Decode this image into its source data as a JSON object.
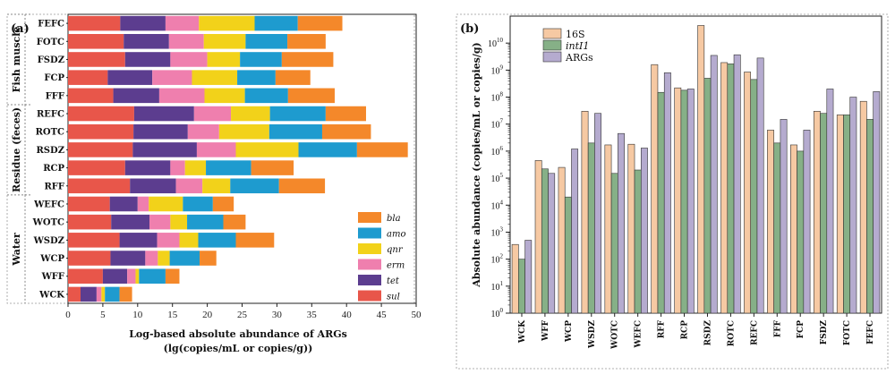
{
  "chart_data": [
    {
      "type": "bar",
      "stacked": true,
      "orientation": "horizontal",
      "panel_label": "(a)",
      "xlabel_line1": "Log-based absolute abundance of ARGs",
      "xlabel_line2": "(lg(copies/mL or copies/g))",
      "xlim": [
        0,
        50
      ],
      "x_ticks": [
        "0",
        "5",
        "10",
        "15",
        "20",
        "25",
        "30",
        "35",
        "40",
        "45",
        "50"
      ],
      "categories": [
        "FEFC",
        "FOTC",
        "FSDZ",
        "FCP",
        "FFF",
        "REFC",
        "ROTC",
        "RSDZ",
        "RCP",
        "RFF",
        "WEFC",
        "WOTC",
        "WSDZ",
        "WCP",
        "WFF",
        "WCK"
      ],
      "groups": [
        {
          "label": "Fish muscle",
          "members": [
            "FEFC",
            "FOTC",
            "FSDZ",
            "FCP",
            "FFF"
          ]
        },
        {
          "label": "Residue (feces)",
          "members": [
            "REFC",
            "ROTC",
            "RSDZ",
            "RCP",
            "RFF"
          ]
        },
        {
          "label": "Water",
          "members": [
            "WEFC",
            "WOTC",
            "WSDZ",
            "WCP",
            "WFF",
            "WCK"
          ]
        }
      ],
      "series": [
        {
          "name": "sul",
          "color": "#e8564a",
          "values": [
            7.5,
            8.0,
            8.2,
            5.7,
            6.5,
            9.5,
            9.4,
            9.3,
            8.2,
            8.9,
            6.0,
            6.2,
            7.4,
            6.1,
            5.0,
            1.8
          ]
        },
        {
          "name": "tet",
          "color": "#5c3d8f",
          "values": [
            6.5,
            6.5,
            6.5,
            6.4,
            6.6,
            8.6,
            7.8,
            9.2,
            6.5,
            6.6,
            4.0,
            5.5,
            5.4,
            5.0,
            3.5,
            2.3
          ]
        },
        {
          "name": "erm",
          "color": "#ef7fae",
          "values": [
            4.8,
            5.0,
            5.3,
            5.7,
            6.5,
            5.3,
            4.5,
            5.6,
            2.1,
            3.8,
            1.6,
            3.0,
            3.2,
            1.8,
            1.2,
            0.7
          ]
        },
        {
          "name": "qnr",
          "color": "#f2d21a",
          "values": [
            8.0,
            6.0,
            4.7,
            6.5,
            5.8,
            5.6,
            7.2,
            9.0,
            3.0,
            4.0,
            4.9,
            2.4,
            2.7,
            1.7,
            0.5,
            0.5
          ]
        },
        {
          "name": "amo",
          "color": "#1e9bcf",
          "values": [
            6.2,
            6.0,
            6.0,
            5.5,
            6.2,
            8.0,
            7.6,
            8.4,
            6.5,
            7.0,
            4.3,
            5.2,
            5.4,
            4.3,
            3.8,
            2.1
          ]
        },
        {
          "name": "bla",
          "color": "#f4882a",
          "values": [
            6.4,
            5.5,
            7.4,
            5.0,
            6.7,
            5.8,
            7.0,
            7.3,
            6.1,
            6.6,
            3.0,
            3.2,
            5.5,
            2.4,
            2.0,
            1.8
          ]
        }
      ]
    },
    {
      "type": "bar",
      "panel_label": "(b)",
      "ylabel": "Absolute abundance (copies/mL or copies/g)",
      "yscale": "log",
      "ylim": [
        1,
        100000000000
      ],
      "y_ticks": [
        "10^0",
        "10^1",
        "10^2",
        "10^3",
        "10^4",
        "10^5",
        "10^6",
        "10^7",
        "10^8",
        "10^9",
        "10^10"
      ],
      "categories": [
        "WCK",
        "WFF",
        "WCP",
        "WSDZ",
        "WOTC",
        "WEFC",
        "RFF",
        "RCP",
        "RSDZ",
        "ROTC",
        "REFC",
        "FFF",
        "FCP",
        "FSDZ",
        "FOTC",
        "FEFC"
      ],
      "series": [
        {
          "name": "16S",
          "color": "#f6c9a3",
          "values": [
            350,
            450000,
            250000,
            30000000,
            1700000,
            1800000,
            1600000000,
            220000000,
            45000000000,
            1900000000,
            850000000,
            6000000,
            1700000,
            30000000,
            22000000,
            70000000
          ]
        },
        {
          "name": "intI1",
          "color": "#86b087",
          "values": [
            100,
            220000,
            20000,
            2000000,
            150000,
            200000,
            150000000,
            180000000,
            500000000,
            1700000000,
            450000000,
            2000000,
            1000000,
            25000000,
            22000000,
            15000000
          ]
        },
        {
          "name": "ARGs",
          "color": "#b5abcf",
          "values": [
            500,
            150000,
            1200000,
            25000000,
            4500000,
            1300000,
            800000000,
            200000000,
            3500000000,
            3700000000,
            2800000000,
            15000000,
            6000000,
            200000000,
            100000000,
            160000000
          ]
        }
      ]
    }
  ]
}
